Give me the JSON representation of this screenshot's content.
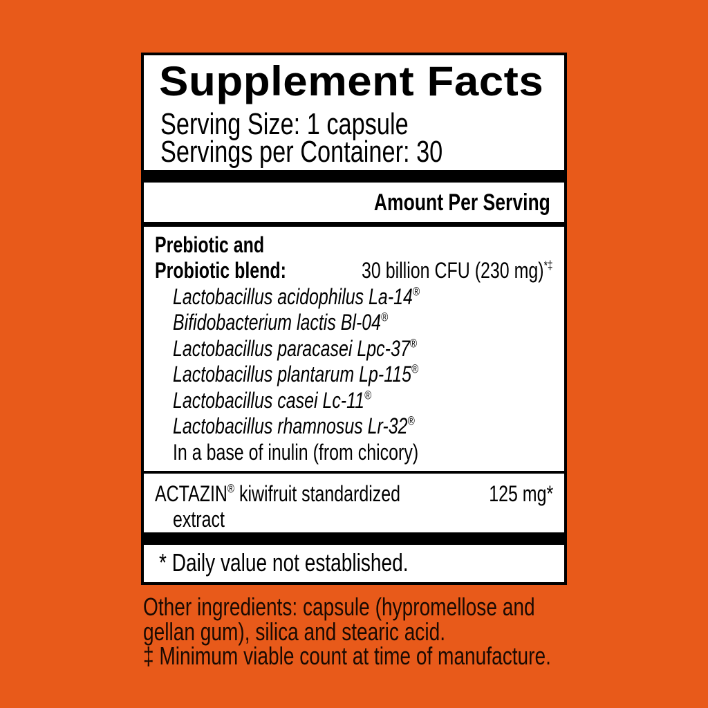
{
  "title": "Supplement Facts",
  "serving_size": "Serving Size: 1 capsule",
  "servings_per_container": "Servings per Container: 30",
  "amount_header": "Amount Per Serving",
  "blend": {
    "name_line1": "Prebiotic and",
    "name_line2": "Probiotic blend:",
    "amount": "30 billion CFU (230 mg)",
    "amount_marks": "*‡",
    "strains": [
      {
        "name": "Lactobacillus acidophilus La-14",
        "mark": "®"
      },
      {
        "name": "Bifidobacterium lactis Bl-04",
        "mark": "®"
      },
      {
        "name": "Lactobacillus paracasei Lpc-37",
        "mark": "®"
      },
      {
        "name": "Lactobacillus plantarum Lp-115",
        "mark": "®"
      },
      {
        "name": "Lactobacillus casei Lc-11",
        "mark": "®"
      },
      {
        "name": "Lactobacillus rhamnosus Lr-32",
        "mark": "®"
      }
    ],
    "base": "In a base of inulin (from chicory)"
  },
  "actazin": {
    "brand": "ACTAZIN",
    "mark": "®",
    "name_rest": " kiwifruit standardized",
    "name_line2": "extract",
    "amount": "125 mg*"
  },
  "daily_value_note": "* Daily value not established.",
  "other_ingredients": [
    "Other ingredients: capsule (hypromellose and",
    "gellan gum), silica and stearic acid.",
    "‡ Minimum viable count at time of manufacture."
  ],
  "colors": {
    "background": "#E85A1A",
    "panel": "#FFFFFF",
    "rule": "#000000"
  }
}
